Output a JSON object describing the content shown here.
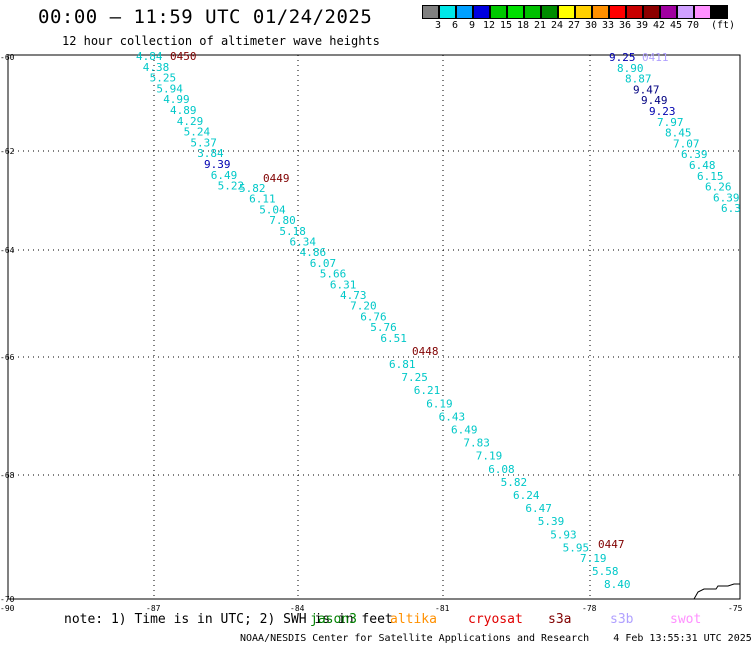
{
  "header": {
    "title": "00:00 – 11:59 UTC 01/24/2025",
    "subtitle": "12 hour collection of altimeter wave heights"
  },
  "legend": {
    "unit": "(ft)",
    "items": [
      {
        "color": "#808080",
        "label": ""
      },
      {
        "color": "#00e8e8",
        "label": "3"
      },
      {
        "color": "#00a0ff",
        "label": "6"
      },
      {
        "color": "#0000e0",
        "label": "9"
      },
      {
        "color": "#00c800",
        "label": "12"
      },
      {
        "color": "#00e000",
        "label": "15"
      },
      {
        "color": "#00c000",
        "label": "18"
      },
      {
        "color": "#008c00",
        "label": "21"
      },
      {
        "color": "#ffff00",
        "label": "24"
      },
      {
        "color": "#ffd000",
        "label": "27"
      },
      {
        "color": "#ff9000",
        "label": "30"
      },
      {
        "color": "#ff0000",
        "label": "33"
      },
      {
        "color": "#c80000",
        "label": "36"
      },
      {
        "color": "#8c0000",
        "label": "39"
      },
      {
        "color": "#a000a0",
        "label": "42"
      },
      {
        "color": "#d0a0ff",
        "label": "45"
      },
      {
        "color": "#ff90ff",
        "label": "70"
      },
      {
        "color": "#000000",
        "label": ""
      }
    ]
  },
  "map": {
    "lat_labels": [
      "-60",
      "-62",
      "-64",
      "-66",
      "-68",
      "-70"
    ],
    "lon_labels": [
      "-90",
      "-87",
      "-84",
      "-81",
      "-78",
      "-75"
    ],
    "colors": {
      "cyan": "#00c8c8",
      "blue": "#0000b0",
      "darkblue": "#000080",
      "red": "#800000",
      "lav": "#b0a0ff"
    },
    "tracks": [
      {
        "track_label": "0450",
        "labels": [
          "4.84",
          "4.38",
          "5.25",
          "5.94",
          "4.99",
          "4.89",
          "4.29",
          "5.24",
          "5.37",
          "3.84",
          "9.39",
          "6.49",
          "5.22"
        ]
      },
      {
        "track_label": "0449",
        "labels": [
          "5.82",
          "6.11",
          "5.04",
          "7.80",
          "5.18",
          "6.34",
          "4.86",
          "6.07",
          "5.66",
          "6.31",
          "4.73",
          "7.20",
          "6.76",
          "5.76",
          "6.51"
        ]
      },
      {
        "track_label": "0448",
        "labels": [
          "6.81",
          "7.25",
          "6.21",
          "6.19",
          "6.43",
          "6.49",
          "7.83",
          "7.19",
          "6.08",
          "5.82",
          "6.24",
          "6.47",
          "5.39",
          "5.93",
          "5.95"
        ]
      },
      {
        "track_label": "0447",
        "labels": [
          "7.19",
          "5.58",
          "8.40"
        ]
      },
      {
        "track_label": "0411",
        "labels": [
          "9.25",
          "8.90",
          "8.87",
          "9.47",
          "9.49",
          "9.23",
          "7.97",
          "8.45",
          "7.07",
          "6.39",
          "6.48",
          "6.15",
          "6.26",
          "6.39",
          "6.3"
        ]
      }
    ]
  },
  "footer": {
    "note": "note: 1) Time is in UTC; 2) SWH is in feet",
    "satellites": [
      {
        "name": "jason3",
        "color": "#008000"
      },
      {
        "name": "altika",
        "color": "#ff9000"
      },
      {
        "name": "cryosat",
        "color": "#e00000"
      },
      {
        "name": "s3a",
        "color": "#800000"
      },
      {
        "name": "s3b",
        "color": "#b0a0ff"
      },
      {
        "name": "swot",
        "color": "#ff90ff"
      }
    ],
    "credit": "NOAA/NESDIS Center for Satellite Applications and Research",
    "timestamp": "4 Feb 13:55:31 UTC 2025"
  }
}
